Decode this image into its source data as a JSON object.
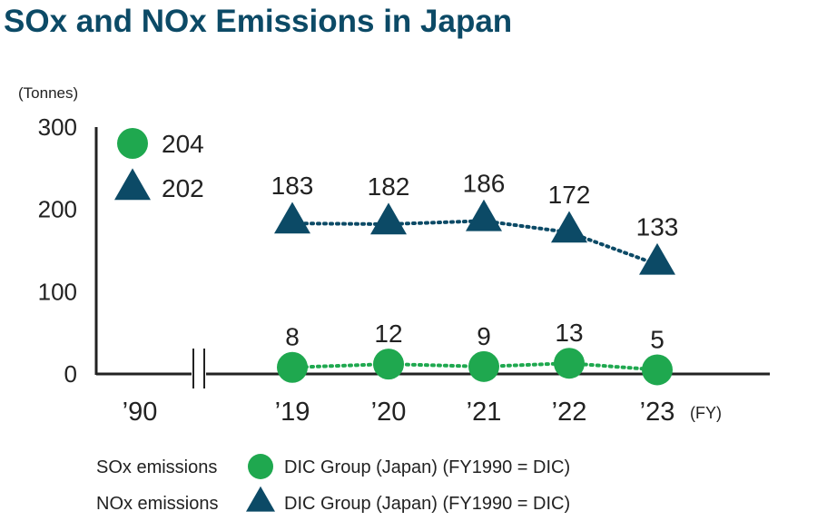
{
  "title": "SOx and NOx Emissions in Japan",
  "unit_label": "(Tonnes)",
  "fy_label": "(FY)",
  "colors": {
    "sox": "#1fa84f",
    "nox": "#0c4a66",
    "title": "#0c4a66"
  },
  "chart_data": {
    "type": "line",
    "title": "SOx and NOx Emissions in Japan",
    "ylabel": "(Tonnes)",
    "xlabel": "(FY)",
    "ylim": [
      0,
      300
    ],
    "yticks": [
      "300",
      "200",
      "100",
      "0"
    ],
    "categories": [
      "’19",
      "’20",
      "’21",
      "’22",
      "’23"
    ],
    "baseline": {
      "category": "’90",
      "values": [
        {
          "series": "SOx emissions",
          "value": 204,
          "label": "204"
        },
        {
          "series": "NOx emissions",
          "value": 202,
          "label": "202"
        }
      ]
    },
    "series": [
      {
        "name": "SOx emissions",
        "marker": "circle",
        "values": [
          8,
          12,
          9,
          13,
          5
        ],
        "labels": [
          "8",
          "12",
          "9",
          "13",
          "5"
        ]
      },
      {
        "name": "NOx emissions",
        "marker": "triangle",
        "values": [
          183,
          182,
          186,
          172,
          133
        ],
        "labels": [
          "183",
          "182",
          "186",
          "172",
          "133"
        ]
      }
    ],
    "legend": [
      {
        "series": "SOx emissions",
        "text": "DIC Group (Japan) (FY1990 = DIC)"
      },
      {
        "series": "NOx emissions",
        "text": "DIC Group (Japan) (FY1990 = DIC)"
      }
    ],
    "legend_position": "bottom-left",
    "grid": false
  }
}
